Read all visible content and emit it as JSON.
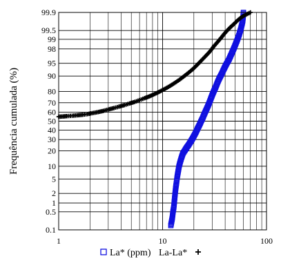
{
  "chart_data": {
    "type": "scatter",
    "x_scale": "log",
    "y_scale": "probability",
    "xlim": [
      1,
      100
    ],
    "ylim": [
      0.1,
      99.9
    ],
    "xlabel": "",
    "ylabel": "Frequência cumulada (%)",
    "grid": true,
    "x_ticks": [
      {
        "value": 1,
        "label": "1"
      },
      {
        "value": 10,
        "label": "10"
      },
      {
        "value": 100,
        "label": "100"
      }
    ],
    "y_ticks": [
      {
        "value": 0.1,
        "label": "0.1"
      },
      {
        "value": 0.5,
        "label": "0.5"
      },
      {
        "value": 1,
        "label": "1"
      },
      {
        "value": 2,
        "label": "2"
      },
      {
        "value": 5,
        "label": "5"
      },
      {
        "value": 10,
        "label": "10"
      },
      {
        "value": 20,
        "label": "20"
      },
      {
        "value": 30,
        "label": "30"
      },
      {
        "value": 40,
        "label": "40"
      },
      {
        "value": 50,
        "label": "50"
      },
      {
        "value": 60,
        "label": "60"
      },
      {
        "value": 70,
        "label": "70"
      },
      {
        "value": 80,
        "label": "80"
      },
      {
        "value": 90,
        "label": "90"
      },
      {
        "value": 95,
        "label": "95"
      },
      {
        "value": 98,
        "label": "98"
      },
      {
        "value": 99,
        "label": "99"
      },
      {
        "value": 99.5,
        "label": "99.5"
      },
      {
        "value": 99.9,
        "label": "99.9"
      }
    ],
    "legend": {
      "placement": "bottom",
      "entries": [
        {
          "label": "La* (ppm)",
          "marker": "square",
          "color": "#1010e0"
        },
        {
          "label": "La-La*",
          "marker": "plus",
          "color": "#000000"
        }
      ]
    },
    "series": [
      {
        "name": "La* (ppm)",
        "marker": "square",
        "color": "#1010e0",
        "points": [
          [
            12.0,
            0.15
          ],
          [
            12.4,
            0.3
          ],
          [
            12.6,
            0.5
          ],
          [
            12.8,
            0.7
          ],
          [
            12.9,
            0.9
          ],
          [
            13.0,
            1.2
          ],
          [
            13.2,
            2.0
          ],
          [
            13.4,
            3.0
          ],
          [
            13.6,
            4.0
          ],
          [
            13.8,
            5.5
          ],
          [
            14.1,
            7.5
          ],
          [
            14.4,
            10
          ],
          [
            14.8,
            12.5
          ],
          [
            15.2,
            15
          ],
          [
            15.7,
            18
          ],
          [
            16.3,
            20
          ],
          [
            17.0,
            22.5
          ],
          [
            17.8,
            25
          ],
          [
            18.6,
            28
          ],
          [
            19.4,
            31
          ],
          [
            20.1,
            34
          ],
          [
            20.8,
            37
          ],
          [
            21.4,
            40
          ],
          [
            22.0,
            43
          ],
          [
            22.7,
            46
          ],
          [
            23.5,
            50
          ],
          [
            24.2,
            53
          ],
          [
            25.0,
            57
          ],
          [
            25.9,
            61
          ],
          [
            26.9,
            65
          ],
          [
            27.9,
            69
          ],
          [
            28.9,
            73
          ],
          [
            30.0,
            77
          ],
          [
            31.2,
            80.5
          ],
          [
            32.5,
            83.5
          ],
          [
            33.8,
            86.5
          ],
          [
            35.3,
            89
          ],
          [
            37.0,
            91
          ],
          [
            38.8,
            93
          ],
          [
            41.0,
            94.7
          ],
          [
            43.5,
            96
          ],
          [
            46.0,
            97.2
          ],
          [
            49.0,
            98.2
          ],
          [
            52.0,
            98.9
          ],
          [
            54.5,
            99.3
          ],
          [
            56.5,
            99.55
          ],
          [
            58.0,
            99.7
          ],
          [
            59.0,
            99.78
          ],
          [
            59.5,
            99.84
          ],
          [
            60.0,
            99.9
          ]
        ]
      },
      {
        "name": "La-La*",
        "marker": "plus",
        "color": "#000000",
        "points": [
          [
            1.0,
            55.0
          ],
          [
            1.1,
            55.3
          ],
          [
            1.2,
            55.7
          ],
          [
            1.35,
            56.1
          ],
          [
            1.5,
            56.6
          ],
          [
            1.7,
            57.2
          ],
          [
            1.9,
            58.0
          ],
          [
            2.1,
            59.0
          ],
          [
            2.4,
            60.2
          ],
          [
            2.7,
            61.5
          ],
          [
            3.0,
            63.0
          ],
          [
            3.4,
            64.5
          ],
          [
            3.8,
            66.0
          ],
          [
            4.3,
            67.6
          ],
          [
            4.8,
            69.2
          ],
          [
            5.4,
            70.8
          ],
          [
            6.0,
            72.5
          ],
          [
            6.7,
            74.3
          ],
          [
            7.5,
            76.0
          ],
          [
            8.4,
            78.0
          ],
          [
            9.4,
            80.0
          ],
          [
            10.5,
            82.0
          ],
          [
            11.7,
            84.0
          ],
          [
            13.0,
            86.0
          ],
          [
            14.5,
            88.0
          ],
          [
            16.0,
            89.8
          ],
          [
            17.7,
            91.5
          ],
          [
            19.5,
            93.0
          ],
          [
            21.5,
            94.5
          ],
          [
            23.5,
            95.7
          ],
          [
            26.0,
            96.8
          ],
          [
            28.5,
            97.6
          ],
          [
            31.0,
            98.3
          ],
          [
            34.0,
            98.8
          ],
          [
            37.0,
            99.15
          ],
          [
            40.0,
            99.4
          ],
          [
            43.0,
            99.55
          ],
          [
            46.0,
            99.65
          ],
          [
            49.0,
            99.72
          ],
          [
            52.0,
            99.78
          ],
          [
            56.0,
            99.83
          ],
          [
            60.0,
            99.86
          ],
          [
            70.0,
            99.9
          ]
        ]
      }
    ]
  }
}
